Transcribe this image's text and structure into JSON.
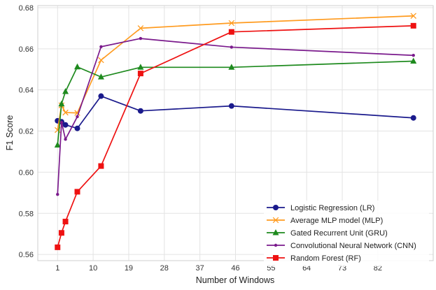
{
  "chart_data": {
    "type": "line",
    "title": "",
    "xlabel": "Number of Windows",
    "ylabel": "F1 Score",
    "xlim": [
      -4,
      96
    ],
    "ylim": [
      0.557,
      0.681
    ],
    "x_ticks": [
      1,
      10,
      19,
      28,
      37,
      46,
      55,
      64,
      73,
      82
    ],
    "y_ticks": [
      0.56,
      0.58,
      0.6,
      0.62,
      0.64,
      0.66,
      0.68
    ],
    "y_tick_labels": [
      "0.56",
      "0.58",
      "0.60",
      "0.62",
      "0.64",
      "0.66",
      "0.68"
    ],
    "grid": true,
    "legend_position": "lower-right",
    "series": [
      {
        "name": "Logistic Regression (LR)",
        "color": "#1a1a8c",
        "marker": "circle",
        "x": [
          1,
          2,
          3,
          6,
          12,
          22,
          45,
          91
        ],
        "y": [
          0.625,
          0.6245,
          0.623,
          0.6213,
          0.637,
          0.6298,
          0.6322,
          0.6264
        ]
      },
      {
        "name": "Average MLP model (MLP)",
        "color": "#ff9b1f",
        "marker": "x",
        "x": [
          1,
          2,
          3,
          6,
          12,
          22,
          45,
          91
        ],
        "y": [
          0.6205,
          0.6325,
          0.629,
          0.6288,
          0.6545,
          0.67,
          0.6725,
          0.676
        ]
      },
      {
        "name": "Gated Recurrent Unit (GRU)",
        "color": "#1e8a1e",
        "marker": "triangle",
        "x": [
          1,
          2,
          3,
          6,
          12,
          22,
          45,
          91
        ],
        "y": [
          0.6132,
          0.6332,
          0.6392,
          0.6512,
          0.6463,
          0.651,
          0.651,
          0.654
        ]
      },
      {
        "name": "Convolutional Neural Network (CNN)",
        "color": "#7a1a8c",
        "marker": "dot",
        "x": [
          1,
          2,
          3,
          6,
          12,
          22,
          45,
          91
        ],
        "y": [
          0.5892,
          0.6242,
          0.616,
          0.627,
          0.661,
          0.665,
          0.6608,
          0.6568
        ]
      },
      {
        "name": "Random Forest (RF)",
        "color": "#ee1111",
        "marker": "square",
        "x": [
          1,
          2,
          3,
          6,
          12,
          22,
          45,
          91
        ],
        "y": [
          0.5635,
          0.5705,
          0.576,
          0.5905,
          0.603,
          0.648,
          0.6682,
          0.6712
        ]
      }
    ]
  }
}
